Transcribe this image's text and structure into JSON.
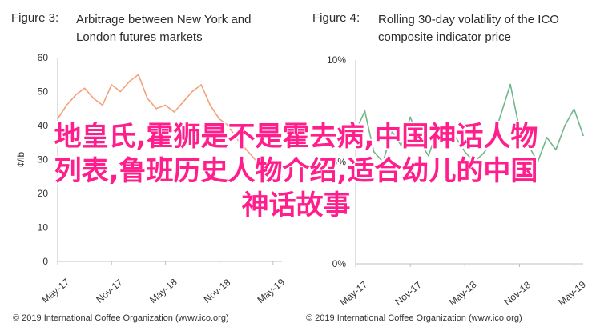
{
  "left": {
    "fig_num": "Figure 3:",
    "title": "Arbitrage between New York and London futures markets",
    "source": "© 2019 International Coffee Organization (www.ico.org)"
  },
  "right": {
    "fig_num": "Figure 4:",
    "title": "Rolling 30-day volatility of the ICO composite indicator price",
    "source": "© 2019 International Coffee Organization (www.ico.org)"
  },
  "overlay": {
    "line1": "地皇氏,霍狮是不是霍去病,中国神话人物",
    "line2": "列表,鲁班历史人物介绍,适合幼儿的中国",
    "line3": "神话故事"
  },
  "colors": {
    "left_series": "#f2a27a",
    "right_series": "#73b58a",
    "overlay_text": "#ff1e8c"
  },
  "chart_data": [
    {
      "type": "line",
      "title": "Arbitrage between New York and London futures markets",
      "ylabel": "¢/lb",
      "ylim": [
        0,
        60
      ],
      "yticks": [
        0,
        10,
        20,
        30,
        40,
        50,
        60
      ],
      "xticks": [
        "May-17",
        "Nov-17",
        "May-18",
        "Nov-18",
        "May-19"
      ],
      "grid": false,
      "x": [
        "May-17",
        "Jun-17",
        "Jul-17",
        "Aug-17",
        "Sep-17",
        "Oct-17",
        "Nov-17",
        "Dec-17",
        "Jan-18",
        "Feb-18",
        "Mar-18",
        "Apr-18",
        "May-18",
        "Jun-18",
        "Jul-18",
        "Aug-18",
        "Sep-18",
        "Oct-18",
        "Nov-18",
        "Dec-18",
        "Jan-19",
        "Feb-19",
        "Mar-19",
        "Apr-19",
        "May-19",
        "Jun-19"
      ],
      "series": [
        {
          "values": [
            42,
            46,
            49,
            51,
            48,
            46,
            52,
            50,
            53,
            55,
            48,
            45,
            46,
            44,
            47,
            50,
            52,
            46,
            42,
            40,
            36,
            33,
            30,
            28,
            26,
            25
          ]
        }
      ]
    },
    {
      "type": "line",
      "title": "Rolling 30-day volatility of the ICO composite indicator price",
      "ylim": [
        0,
        10
      ],
      "yticks": [
        "0%",
        "5%",
        "10%"
      ],
      "xticks": [
        "May-17",
        "Nov-17",
        "May-18",
        "Nov-18",
        "May-19"
      ],
      "grid": false,
      "x": [
        "May-17",
        "Jun-17",
        "Jul-17",
        "Aug-17",
        "Sep-17",
        "Oct-17",
        "Nov-17",
        "Dec-17",
        "Jan-18",
        "Feb-18",
        "Mar-18",
        "Apr-18",
        "May-18",
        "Jun-18",
        "Jul-18",
        "Aug-18",
        "Sep-18",
        "Oct-18",
        "Nov-18",
        "Dec-18",
        "Jan-19",
        "Feb-19",
        "Mar-19",
        "Apr-19",
        "May-19",
        "Jun-19"
      ],
      "series": [
        {
          "values": [
            6.5,
            7.5,
            5.5,
            5.0,
            6.5,
            5.8,
            7.2,
            6.0,
            5.3,
            6.6,
            5.8,
            6.2,
            5.5,
            5.0,
            5.4,
            6.0,
            7.4,
            8.8,
            6.6,
            5.8,
            5.0,
            6.2,
            5.6,
            6.8,
            7.6,
            6.3
          ]
        }
      ]
    }
  ]
}
